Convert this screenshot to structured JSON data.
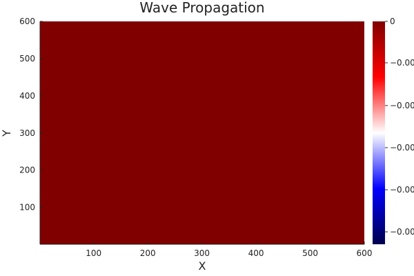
{
  "chart_data": {
    "type": "heatmap",
    "title": "Wave Propagation",
    "xlabel": "X",
    "ylabel": "Y",
    "xlim": [
      1,
      600
    ],
    "ylim": [
      1,
      600
    ],
    "x_ticks": [
      100,
      200,
      300,
      400,
      500,
      600
    ],
    "y_ticks": [
      100,
      200,
      300,
      400,
      500,
      600
    ],
    "field_color": "#800000",
    "grid": false,
    "colorbar": {
      "colors": [
        "#00004d",
        "#0000ff",
        "#ffffff",
        "#ff0000",
        "#800000"
      ],
      "tick_labels": [
        "0",
        "−0.00",
        "−0.00",
        "−0.00",
        "−0.00",
        "−0.00"
      ]
    }
  }
}
